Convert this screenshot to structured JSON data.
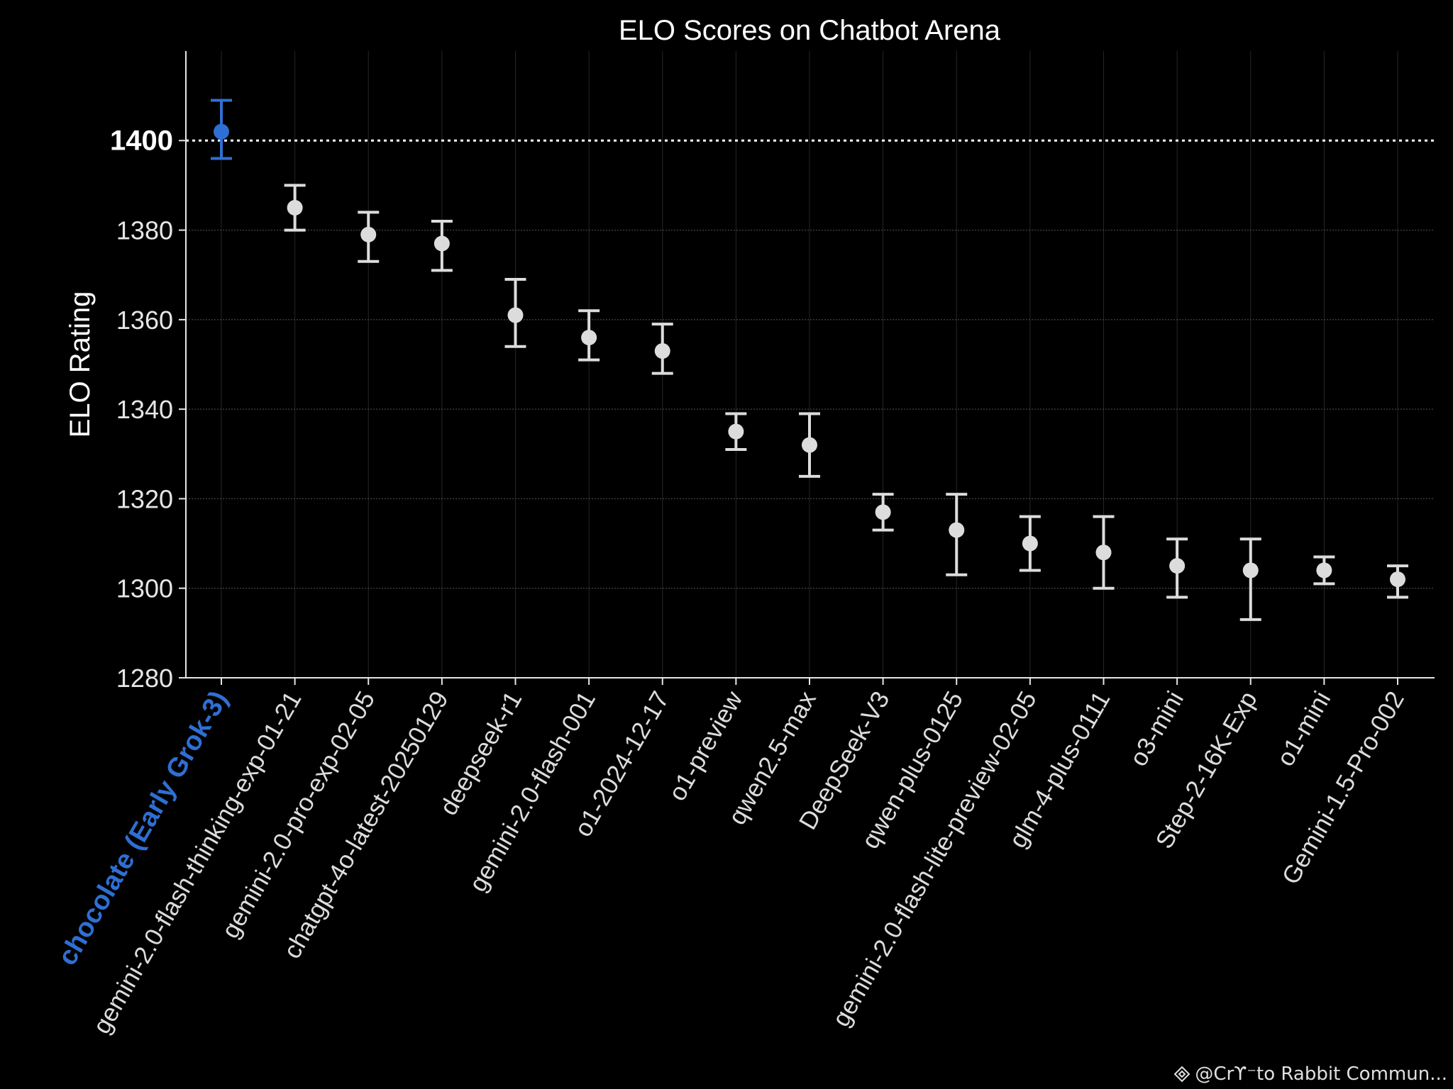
{
  "chart_data": {
    "type": "scatter",
    "variant": "errorbar",
    "title": "ELO Scores on Chatbot Arena",
    "xlabel": "",
    "ylabel": "ELO Rating",
    "ylim": [
      1280,
      1420
    ],
    "yticks": [
      1280,
      1300,
      1320,
      1340,
      1360,
      1380,
      1400
    ],
    "reference_line": {
      "value": 1400,
      "style": "dotted"
    },
    "grid": true,
    "highlight_color": "#2f6fd4",
    "point_color": "#dcdcdc",
    "categories": [
      "chocolate (Early Grok-3)",
      "gemini-2.0-flash-thinking-exp-01-21",
      "gemini-2.0-pro-exp-02-05",
      "chatgpt-4o-latest-20250129",
      "deepseek-r1",
      "gemini-2.0-flash-001",
      "o1-2024-12-17",
      "o1-preview",
      "qwen2.5-max",
      "DeepSeek-V3",
      "qwen-plus-0125",
      "gemini-2.0-flash-lite-preview-02-05",
      "glm-4-plus-0111",
      "o3-mini",
      "Step-2-16K-Exp",
      "o1-mini",
      "Gemini-1.5-Pro-002"
    ],
    "values": [
      1402,
      1385,
      1379,
      1377,
      1361,
      1356,
      1353,
      1335,
      1332,
      1317,
      1313,
      1310,
      1308,
      1305,
      1304,
      1304,
      1302
    ],
    "lower": [
      1396,
      1380,
      1373,
      1371,
      1354,
      1351,
      1348,
      1331,
      1325,
      1313,
      1303,
      1304,
      1300,
      1298,
      1293,
      1301,
      1298
    ],
    "upper": [
      1409,
      1390,
      1384,
      1382,
      1369,
      1362,
      1359,
      1339,
      1339,
      1321,
      1321,
      1316,
      1316,
      1311,
      1311,
      1307,
      1305
    ],
    "highlighted": [
      0
    ]
  },
  "watermark": {
    "text": "@Crϒ⁻to Rabbit Commun...",
    "icon": "binance-diamond-icon"
  }
}
